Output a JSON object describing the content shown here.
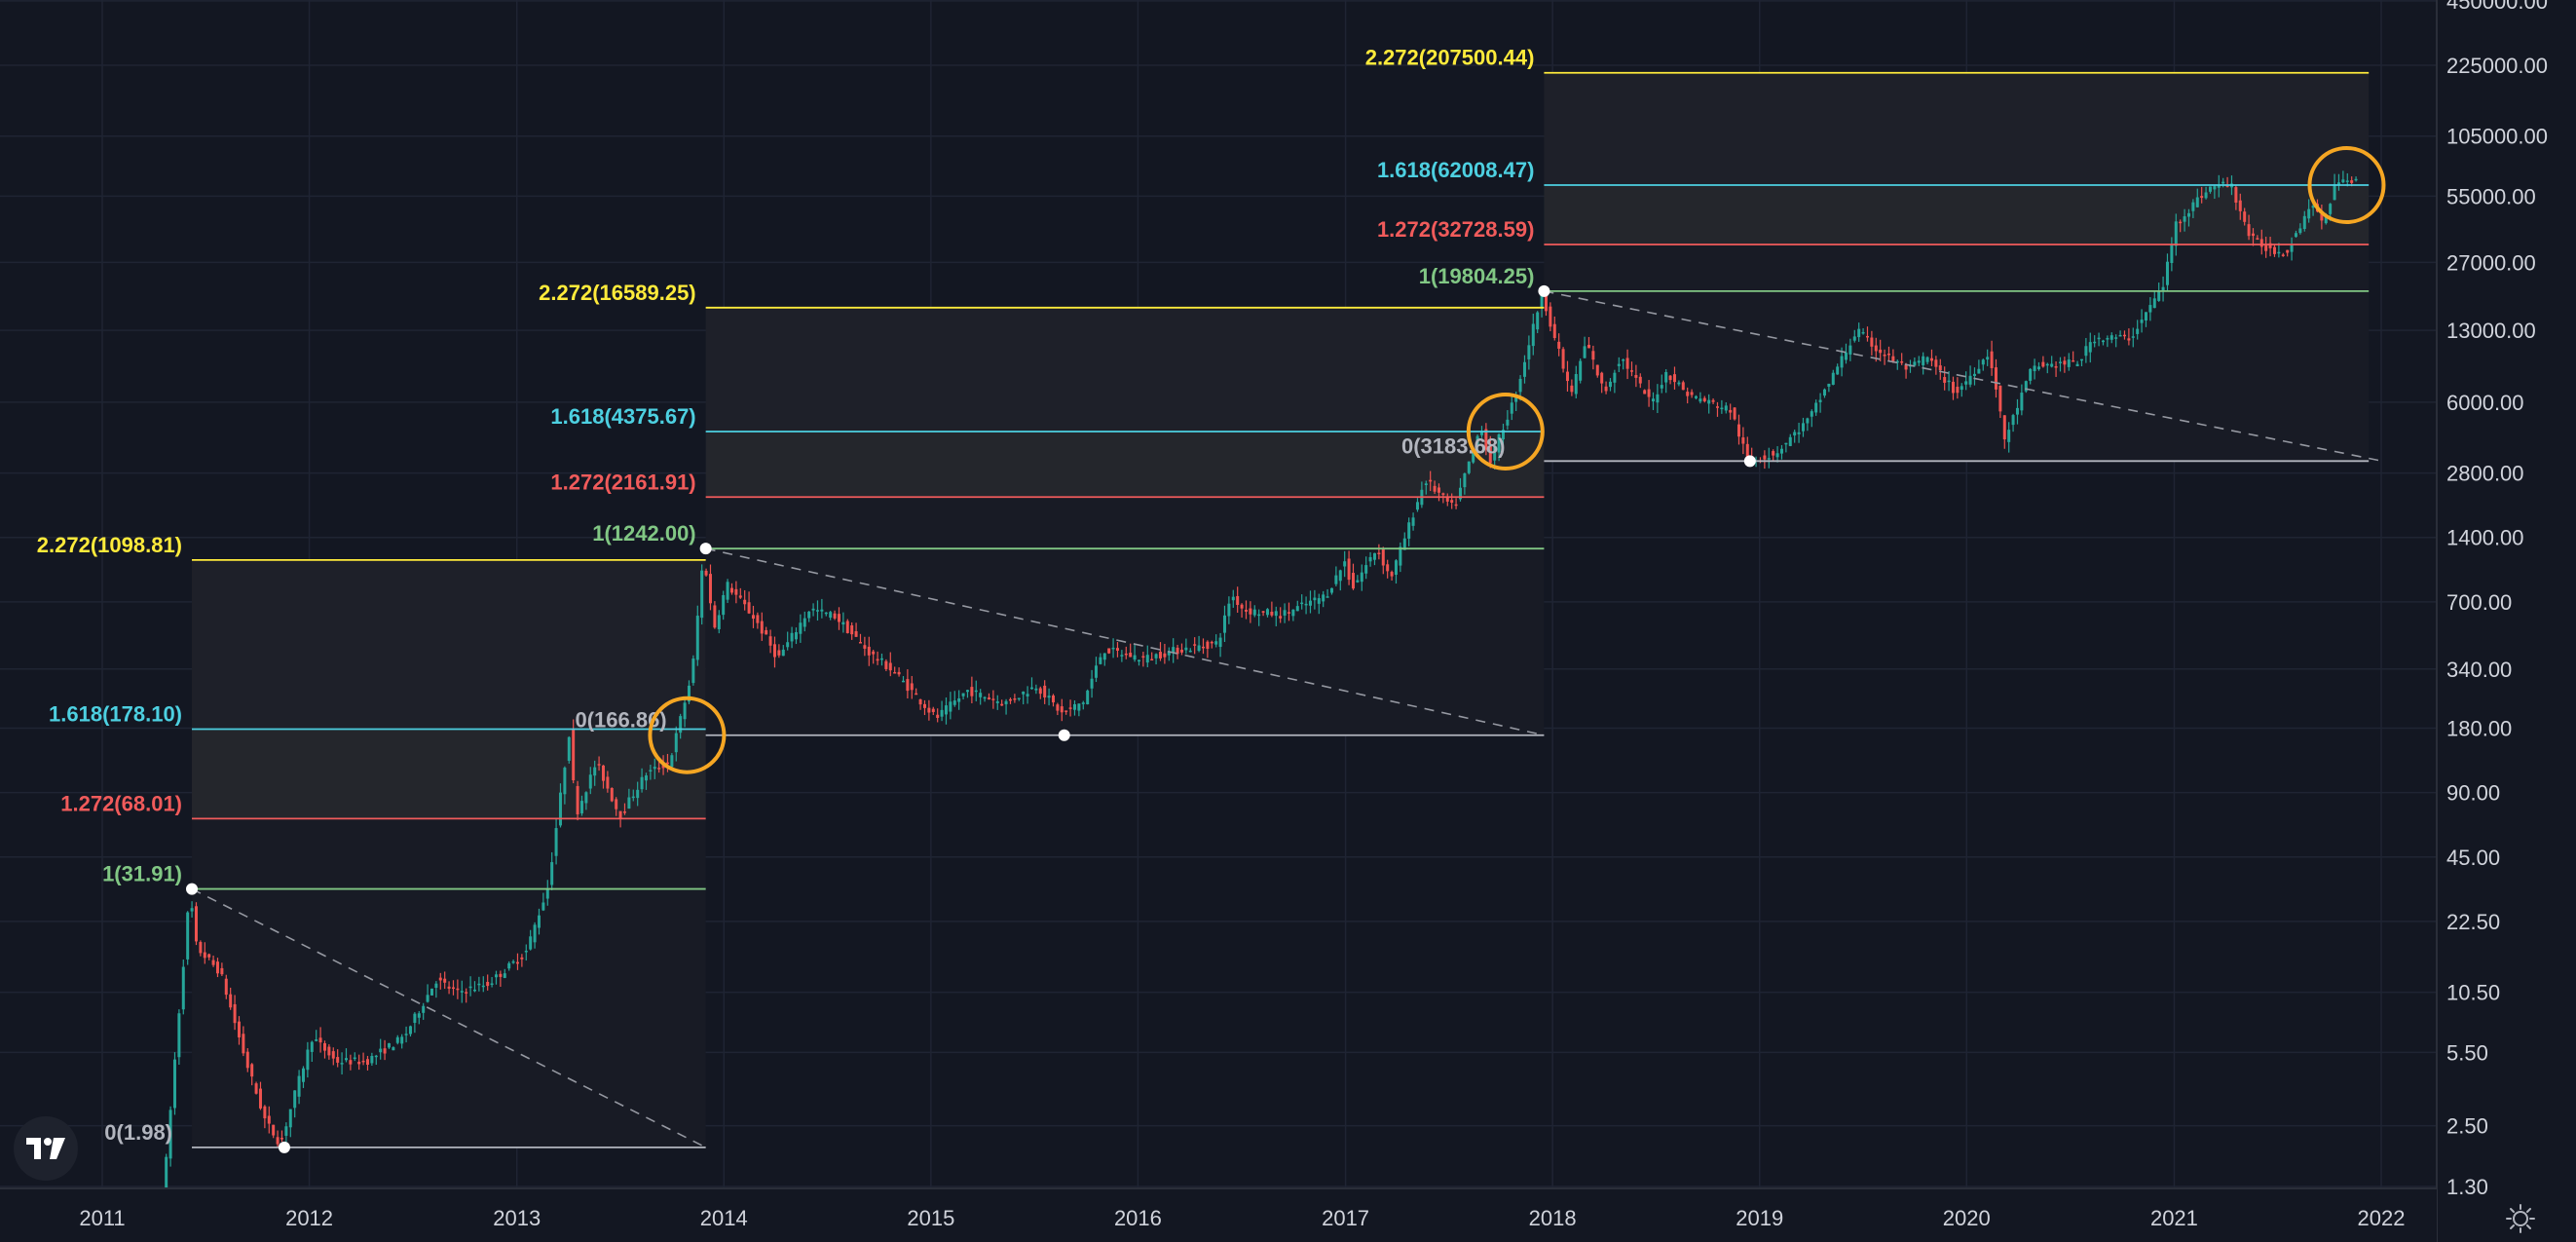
{
  "colors": {
    "background": "#131722",
    "grid": "#1f2433",
    "up": "#26a69a",
    "down": "#ef5350",
    "fib_0": "#b2b5be",
    "fib_1": "#81c784",
    "fib_1272": "#f15b5b",
    "fib_1618": "#4dd0e1",
    "fib_2272": "#ffeb3b",
    "highlight_circle": "#f5a623",
    "trend_line": "#9598a1"
  },
  "chart_data": {
    "type": "candlestick",
    "scale": "log",
    "grid": true,
    "x_axis": {
      "tick_labels": [
        "2011",
        "2012",
        "2013",
        "2014",
        "2015",
        "2016",
        "2017",
        "2018",
        "2019",
        "2020",
        "2021",
        "2022"
      ]
    },
    "y_axis": {
      "tick_labels": [
        "450000.00",
        "225000.00",
        "105000.00",
        "55000.00",
        "27000.00",
        "13000.00",
        "6000.00",
        "2800.00",
        "1400.00",
        "700.00",
        "340.00",
        "180.00",
        "90.00",
        "45.00",
        "22.50",
        "10.50",
        "5.50",
        "2.50",
        "1.30"
      ],
      "tick_values": [
        450000,
        225000,
        105000,
        55000,
        27000,
        13000,
        6000,
        2800,
        1400,
        700,
        340,
        180,
        90,
        45,
        22.5,
        10.5,
        5.5,
        2.5,
        1.3
      ]
    },
    "price_path": [
      [
        "2011-04-20",
        1.0
      ],
      [
        "2011-05-15",
        6.0
      ],
      [
        "2011-06-08",
        31.0
      ],
      [
        "2011-06-20",
        17.0
      ],
      [
        "2011-08-01",
        13.0
      ],
      [
        "2011-09-15",
        5.0
      ],
      [
        "2011-10-20",
        2.6
      ],
      [
        "2011-11-15",
        2.05
      ],
      [
        "2011-12-10",
        3.5
      ],
      [
        "2012-01-10",
        6.5
      ],
      [
        "2012-02-20",
        5.0
      ],
      [
        "2012-04-15",
        5.0
      ],
      [
        "2012-06-20",
        6.5
      ],
      [
        "2012-08-15",
        12.0
      ],
      [
        "2012-09-20",
        10.5
      ],
      [
        "2012-11-15",
        11.5
      ],
      [
        "2013-01-20",
        16.0
      ],
      [
        "2013-03-01",
        33.0
      ],
      [
        "2013-04-08",
        180.0
      ],
      [
        "2013-04-18",
        70.0
      ],
      [
        "2013-05-25",
        125.0
      ],
      [
        "2013-07-05",
        70.0
      ],
      [
        "2013-08-20",
        110.0
      ],
      [
        "2013-10-01",
        125.0
      ],
      [
        "2013-11-10",
        330.0
      ],
      [
        "2013-11-30",
        1180.0
      ],
      [
        "2013-12-18",
        520.0
      ],
      [
        "2014-01-10",
        850.0
      ],
      [
        "2014-03-01",
        580.0
      ],
      [
        "2014-04-10",
        380.0
      ],
      [
        "2014-06-05",
        650.0
      ],
      [
        "2014-07-20",
        600.0
      ],
      [
        "2014-09-20",
        400.0
      ],
      [
        "2014-11-01",
        330.0
      ],
      [
        "2015-01-14",
        200.0
      ],
      [
        "2015-03-10",
        270.0
      ],
      [
        "2015-05-15",
        235.0
      ],
      [
        "2015-07-10",
        285.0
      ],
      [
        "2015-08-24",
        210.0
      ],
      [
        "2015-10-01",
        240.0
      ],
      [
        "2015-11-04",
        420.0
      ],
      [
        "2016-01-15",
        380.0
      ],
      [
        "2016-03-10",
        415.0
      ],
      [
        "2016-05-25",
        450.0
      ],
      [
        "2016-06-17",
        760.0
      ],
      [
        "2016-07-10",
        640.0
      ],
      [
        "2016-09-15",
        610.0
      ],
      [
        "2016-12-01",
        750.0
      ],
      [
        "2017-01-05",
        1100.0
      ],
      [
        "2017-01-15",
        800.0
      ],
      [
        "2017-03-01",
        1250.0
      ],
      [
        "2017-03-25",
        900.0
      ],
      [
        "2017-05-25",
        2600.0
      ],
      [
        "2017-07-15",
        1900.0
      ],
      [
        "2017-09-01",
        4700.0
      ],
      [
        "2017-09-15",
        3100.0
      ],
      [
        "2017-11-01",
        6500.0
      ],
      [
        "2017-12-17",
        19500.0
      ],
      [
        "2018-02-06",
        6500.0
      ],
      [
        "2018-03-05",
        11500.0
      ],
      [
        "2018-04-06",
        6600.0
      ],
      [
        "2018-05-05",
        9800.0
      ],
      [
        "2018-06-28",
        5900.0
      ],
      [
        "2018-07-25",
        8300.0
      ],
      [
        "2018-09-01",
        6500.0
      ],
      [
        "2018-11-15",
        5500.0
      ],
      [
        "2018-12-15",
        3200.0
      ],
      [
        "2019-02-01",
        3450.0
      ],
      [
        "2019-04-02",
        5000.0
      ],
      [
        "2019-06-26",
        13000.0
      ],
      [
        "2019-08-01",
        10500.0
      ],
      [
        "2019-09-25",
        8500.0
      ],
      [
        "2019-10-26",
        9800.0
      ],
      [
        "2019-12-17",
        6600.0
      ],
      [
        "2020-02-14",
        10300.0
      ],
      [
        "2020-03-12",
        4000.0
      ],
      [
        "2020-04-30",
        8800.0
      ],
      [
        "2020-07-20",
        9200.0
      ],
      [
        "2020-08-15",
        12000.0
      ],
      [
        "2020-10-20",
        12000.0
      ],
      [
        "2020-12-16",
        21000.0
      ],
      [
        "2021-01-08",
        41000.0
      ],
      [
        "2021-02-20",
        55000.0
      ],
      [
        "2021-03-13",
        61000.0
      ],
      [
        "2021-04-14",
        63000.0
      ],
      [
        "2021-05-19",
        35000.0
      ],
      [
        "2021-06-22",
        31000.0
      ],
      [
        "2021-07-20",
        30000.0
      ],
      [
        "2021-09-06",
        52000.0
      ],
      [
        "2021-09-21",
        40000.0
      ],
      [
        "2021-10-20",
        66000.0
      ],
      [
        "2021-11-10",
        68000.0
      ],
      [
        "2021-11-15",
        64000.0
      ]
    ],
    "fib_extensions": [
      {
        "start": "2011-06-08",
        "end": "2013-11-30",
        "levels": [
          {
            "label": "2.272(1098.81)",
            "value": 1098.81,
            "level": "2.272"
          },
          {
            "label": "1.618(178.10)",
            "value": 178.1,
            "level": "1.618"
          },
          {
            "label": "1.272(68.01)",
            "value": 68.01,
            "level": "1.272"
          },
          {
            "label": "1(31.91)",
            "value": 31.91,
            "level": "1"
          },
          {
            "label": "0(1.98)",
            "value": 1.98,
            "level": "0"
          }
        ],
        "trend_from": {
          "date": "2011-06-08",
          "value": 31.91
        },
        "trend_to": {
          "date": "2013-11-30",
          "value": 1.98
        },
        "low_point": {
          "date": "2011-11-18",
          "value": 1.98
        }
      },
      {
        "start": "2013-11-30",
        "end": "2017-12-17",
        "levels": [
          {
            "label": "2.272(16589.25)",
            "value": 16589.25,
            "level": "2.272"
          },
          {
            "label": "1.618(4375.67)",
            "value": 4375.67,
            "level": "1.618"
          },
          {
            "label": "1.272(2161.91)",
            "value": 2161.91,
            "level": "1.272"
          },
          {
            "label": "1(1242.00)",
            "value": 1242.0,
            "level": "1"
          },
          {
            "label": "0(166.86)",
            "value": 166.86,
            "level": "0"
          }
        ],
        "trend_from": {
          "date": "2013-11-30",
          "value": 1242.0
        },
        "trend_to": {
          "date": "2017-12-17",
          "value": 166.86
        },
        "low_point": {
          "date": "2015-08-24",
          "value": 166.86
        }
      },
      {
        "start": "2017-12-17",
        "end": "2021-12-10",
        "levels": [
          {
            "label": "2.272(207500.44)",
            "value": 207500.44,
            "level": "2.272"
          },
          {
            "label": "1.618(62008.47)",
            "value": 62008.47,
            "level": "1.618"
          },
          {
            "label": "1.272(32728.59)",
            "value": 32728.59,
            "level": "1.272"
          },
          {
            "label": "1(19804.25)",
            "value": 19804.25,
            "level": "1"
          },
          {
            "label": "0(3183.68)",
            "value": 3183.68,
            "level": "0"
          }
        ],
        "trend_from": {
          "date": "2017-12-17",
          "value": 19804.25
        },
        "trend_to": {
          "date": "2022-01-03",
          "value": 3183.68
        },
        "low_point": {
          "date": "2018-12-15",
          "value": 3183.68
        }
      }
    ],
    "highlight_circles": [
      {
        "date": "2013-10-28",
        "value": 166.86
      },
      {
        "date": "2017-10-10",
        "value": 4375.67
      },
      {
        "date": "2021-11-01",
        "value": 62008.47
      }
    ]
  },
  "icons": {
    "logo": "tradingview-logo-icon",
    "settings": "settings-sun-icon"
  }
}
